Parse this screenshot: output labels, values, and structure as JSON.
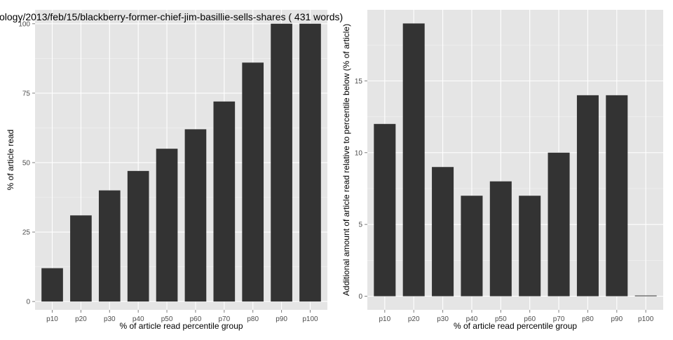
{
  "page_title": "ology/2013/feb/15/blackberry-former-chief-jim-basillie-sells-shares ( 431 words)",
  "colors": {
    "panel_background": "#e5e5e5",
    "grid_major": "#ffffff",
    "grid_minor": "#f2f2f2",
    "bar_fill": "#333333",
    "tick_text": "#4d4d4d",
    "axis_title_text": "#000000"
  },
  "chart_data": [
    {
      "type": "bar",
      "categories": [
        "p10",
        "p20",
        "p30",
        "p40",
        "p50",
        "p60",
        "p70",
        "p80",
        "p90",
        "p100"
      ],
      "values": [
        12,
        31,
        40,
        47,
        55,
        62,
        72,
        86,
        100,
        100
      ],
      "xlabel": "% of article read percentile group",
      "ylabel": "% of article read",
      "ylim": [
        -3,
        105
      ],
      "yticks": [
        0,
        25,
        50,
        75,
        100
      ],
      "ytick_labels": [
        "0",
        "25",
        "50",
        "75",
        "100"
      ],
      "grid": true,
      "legend": "none"
    },
    {
      "type": "bar",
      "categories": [
        "p10",
        "p20",
        "p30",
        "p40",
        "p50",
        "p60",
        "p70",
        "p80",
        "p90",
        "p100"
      ],
      "values": [
        12,
        19,
        9,
        7,
        8,
        7,
        10,
        14,
        14,
        0
      ],
      "xlabel": "% of article read percentile group",
      "ylabel": "Additional amount of article read relative to percentile below (% of article)",
      "ylim": [
        -0.95,
        19.95
      ],
      "yticks": [
        0,
        5,
        10,
        15
      ],
      "ytick_labels": [
        "0",
        "5",
        "10",
        "15"
      ],
      "grid": true,
      "legend": "none"
    }
  ]
}
